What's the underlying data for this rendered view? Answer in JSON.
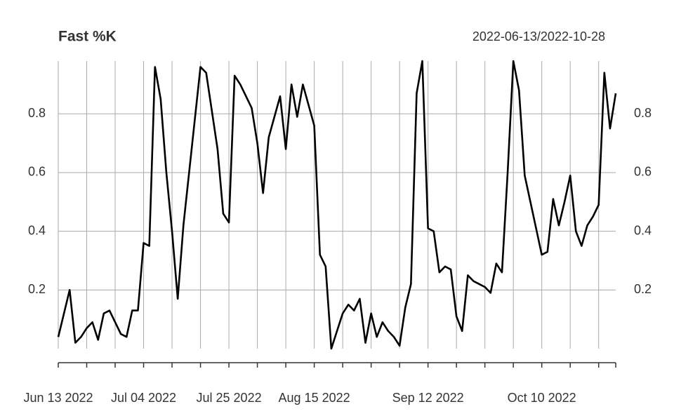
{
  "chart_data": {
    "type": "line",
    "title": "Fast %K",
    "subtitle": "2022-06-13/2022-10-28",
    "categories": [
      "Jun 13 2022",
      null,
      null,
      null,
      null,
      null,
      null,
      null,
      null,
      null,
      null,
      null,
      null,
      null,
      null,
      "Jul 04 2022",
      null,
      null,
      null,
      null,
      null,
      null,
      null,
      null,
      null,
      null,
      null,
      null,
      null,
      null,
      "Jul 25 2022",
      null,
      null,
      null,
      null,
      null,
      null,
      null,
      null,
      null,
      null,
      null,
      null,
      null,
      null,
      "Aug 15 2022",
      null,
      null,
      null,
      null,
      null,
      null,
      null,
      null,
      null,
      null,
      null,
      null,
      null,
      null,
      null,
      null,
      null,
      null,
      null,
      "Sep 12 2022",
      null,
      null,
      null,
      null,
      null,
      null,
      null,
      null,
      null,
      null,
      null,
      null,
      null,
      null,
      null,
      null,
      null,
      null,
      null,
      "Oct 10 2022",
      null,
      null,
      null,
      null,
      null,
      null,
      null,
      null,
      null,
      null,
      null,
      null,
      null
    ],
    "values": [
      0.04,
      0.12,
      0.2,
      0.02,
      0.04,
      0.07,
      0.09,
      0.03,
      0.12,
      0.13,
      0.09,
      0.05,
      0.04,
      0.13,
      0.13,
      0.36,
      0.35,
      0.96,
      0.85,
      0.6,
      0.4,
      0.17,
      0.42,
      0.6,
      0.78,
      0.96,
      0.94,
      0.81,
      0.68,
      0.46,
      0.43,
      0.93,
      0.9,
      0.86,
      0.82,
      0.7,
      0.53,
      0.72,
      0.79,
      0.86,
      0.68,
      0.9,
      0.79,
      0.9,
      0.83,
      0.76,
      0.32,
      0.28,
      0.0,
      0.06,
      0.12,
      0.15,
      0.13,
      0.17,
      0.02,
      0.12,
      0.04,
      0.09,
      0.06,
      0.04,
      0.01,
      0.14,
      0.22,
      0.87,
      0.98,
      0.41,
      0.4,
      0.26,
      0.28,
      0.27,
      0.11,
      0.06,
      0.25,
      0.23,
      0.22,
      0.21,
      0.19,
      0.29,
      0.26,
      0.6,
      0.98,
      0.88,
      0.59,
      0.5,
      0.41,
      0.32,
      0.33,
      0.51,
      0.42,
      0.5,
      0.59,
      0.4,
      0.35,
      0.42,
      0.45,
      0.49,
      0.94,
      0.75,
      0.87
    ],
    "color": "#000000",
    "ylim": [
      0,
      0.98
    ],
    "yticks": [
      0.2,
      0.4,
      0.6,
      0.8
    ],
    "grid": true
  }
}
